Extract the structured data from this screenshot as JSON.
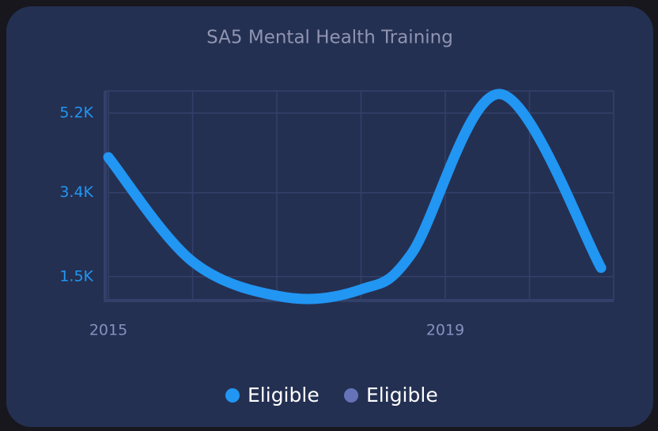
{
  "chart_data": {
    "type": "line",
    "title": "SA5 Mental Health Training",
    "x": [
      2015,
      2016,
      2017.1,
      2018,
      2018.6,
      2019.65,
      2020.85
    ],
    "series": [
      {
        "name": "Eligible",
        "color": "#2196f3",
        "values": [
          4200,
          1840,
          1035,
          1210,
          2020,
          5630,
          1700
        ]
      },
      {
        "name": "Eligible",
        "color": "#6673b8"
      }
    ],
    "xlim": [
      2015,
      2021
    ],
    "xticks": [
      2015,
      2019
    ],
    "x_gridlines": [
      2015,
      2016,
      2017,
      2018,
      2019,
      2020,
      2021
    ],
    "ylim": [
      960,
      5700
    ],
    "yticks": [
      {
        "value": 1500,
        "label": "1.5K"
      },
      {
        "value": 3400,
        "label": "3.4K"
      },
      {
        "value": 5200,
        "label": "5.2K"
      }
    ],
    "grid": true,
    "legend": "bottom"
  }
}
